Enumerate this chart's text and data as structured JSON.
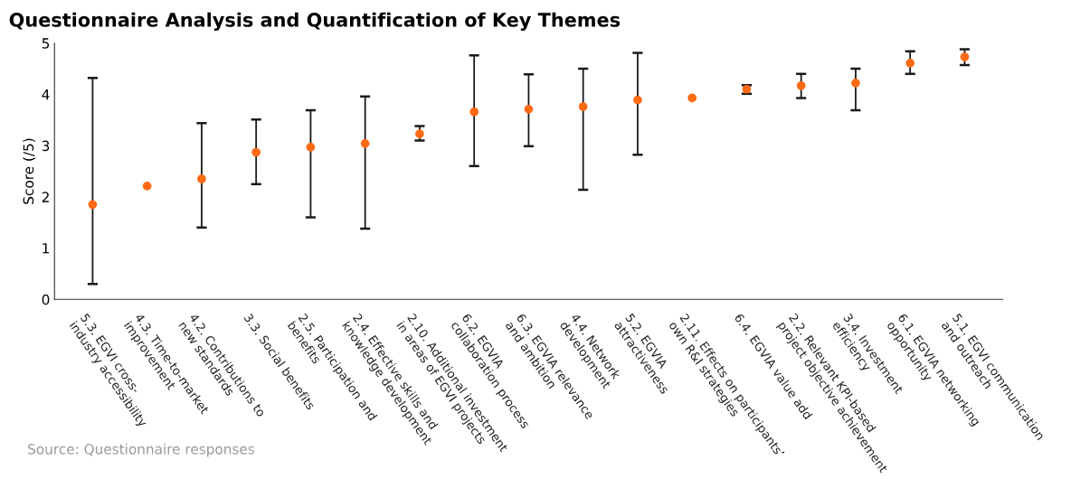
{
  "chart_data": {
    "type": "scatter",
    "title": "Questionnaire Analysis and Quantification of Key Themes",
    "ylabel": "Score (/5)",
    "categories": [
      "5.3. EGVI cross-\nindustry accessibility",
      "4.3. Time-to-market\nimprovement",
      "4.2. Contributions to\nnew standards",
      "3.3. Social benefits",
      "2.5. Participation and\nbenefits",
      "2.4. Effective skills and\nknowledge development",
      "2.10. Additional investment\nin areas of EGVI projects",
      "6.2. EGVIA\ncollaboration process",
      "6.3. EGVIA relevance\nand ambition",
      "4.4. Network\ndevelopment",
      "5.2. EGVIA\nattractiveness",
      "2.11. Effects on participants’\nown R&I strategies",
      "6.4. EGVIA value add",
      "2.2. Relevant KPI-based\nproject objective achievement",
      "3.4. Investment\nefficiency",
      "6.1. EGVIA networking\nopportunity",
      "5.1. EGVI communication\nand outreach"
    ],
    "series": [
      {
        "color": "#ff6a13",
        "values": [
          1.85,
          2.21,
          2.35,
          2.87,
          2.97,
          3.04,
          3.23,
          3.66,
          3.71,
          3.76,
          3.89,
          3.93,
          4.1,
          4.17,
          4.22,
          4.61,
          4.73
        ],
        "errors": [
          [
            0.3,
            4.32
          ],
          null,
          [
            1.4,
            3.44
          ],
          [
            2.25,
            3.51
          ],
          [
            1.6,
            3.69
          ],
          [
            1.38,
            3.96
          ],
          [
            3.1,
            3.38
          ],
          [
            2.6,
            4.76
          ],
          [
            2.99,
            4.39
          ],
          [
            2.14,
            4.5
          ],
          [
            2.82,
            4.81
          ],
          null,
          [
            4.01,
            4.18
          ],
          [
            3.93,
            4.4
          ],
          [
            3.69,
            4.5
          ],
          [
            4.4,
            4.84
          ],
          [
            4.57,
            4.88
          ]
        ]
      }
    ],
    "ylim": [
      0,
      5
    ],
    "yticks": [
      0,
      1,
      2,
      3,
      4,
      5
    ],
    "grid": false,
    "marker": "circle",
    "annotations": [
      "Source: Questionnaire responses"
    ]
  }
}
